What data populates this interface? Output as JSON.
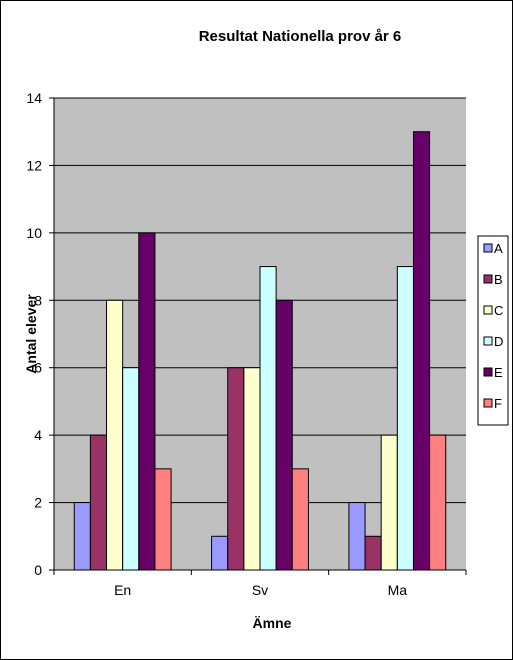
{
  "chart_data": {
    "type": "bar",
    "title": "Resultat Nationella prov år 6",
    "xlabel": "Ämne",
    "ylabel": "Antal elever",
    "categories": [
      "En",
      "Sv",
      "Ma"
    ],
    "ylim": [
      0,
      14
    ],
    "yticks": [
      "0",
      "2",
      "4",
      "6",
      "8",
      "10",
      "12",
      "14"
    ],
    "grid": true,
    "legend_position": "right",
    "series": [
      {
        "name": "A",
        "color": "#9999ff",
        "values": [
          2,
          1,
          2
        ]
      },
      {
        "name": "B",
        "color": "#993366",
        "values": [
          4,
          6,
          1
        ]
      },
      {
        "name": "C",
        "color": "#ffffcc",
        "values": [
          8,
          6,
          4
        ]
      },
      {
        "name": "D",
        "color": "#ccffff",
        "values": [
          6,
          9,
          9
        ]
      },
      {
        "name": "E",
        "color": "#660066",
        "values": [
          10,
          8,
          13
        ]
      },
      {
        "name": "F",
        "color": "#ff8080",
        "values": [
          3,
          3,
          4
        ]
      }
    ],
    "plot_background": "#c0c0c0"
  }
}
